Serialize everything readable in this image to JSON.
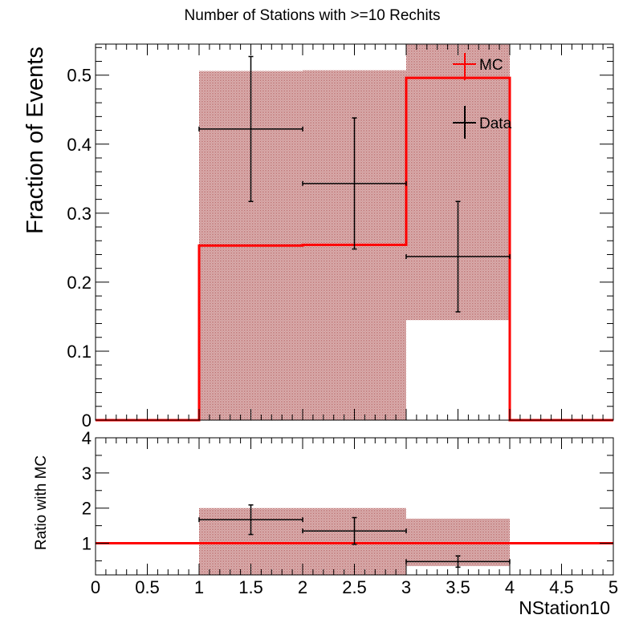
{
  "chart_data": [
    {
      "type": "bar",
      "title": "Number of Stations with >=10 Rechits",
      "xlabel": "",
      "ylabel": "Fraction of Events",
      "xlim": [
        0,
        5
      ],
      "ylim": [
        0,
        0.545
      ],
      "y_ticks": [
        0,
        0.1,
        0.2,
        0.3,
        0.4,
        0.5
      ],
      "y_tick_labels": [
        "0",
        "0.1",
        "0.2",
        "0.3",
        "0.4",
        "0.5"
      ],
      "grid": false,
      "legend_position": "top-right",
      "series": [
        {
          "name": "MC",
          "style": "histogram",
          "color": "#ff0000",
          "bins": [
            [
              0,
              1
            ],
            [
              1,
              2
            ],
            [
              2,
              3
            ],
            [
              3,
              4
            ],
            [
              4,
              5
            ]
          ],
          "values": [
            0,
            0.253,
            0.254,
            0.496,
            0
          ],
          "uncertainty_band": [
            [
              0,
              0
            ],
            [
              0,
              0.506
            ],
            [
              0,
              0.507
            ],
            [
              0.145,
              0.545
            ],
            [
              0,
              0
            ]
          ]
        },
        {
          "name": "Data",
          "style": "errorbar",
          "color": "#000000",
          "x": [
            1.5,
            2.5,
            3.5
          ],
          "x_err": [
            0.5,
            0.5,
            0.5
          ],
          "values": [
            0.422,
            0.343,
            0.237
          ],
          "y_err": [
            0.105,
            0.095,
            0.08
          ]
        }
      ]
    },
    {
      "type": "line",
      "title": "",
      "xlabel": "NStation10",
      "ylabel": "Ratio with MC",
      "xlim": [
        0,
        5
      ],
      "ylim": [
        0.1,
        4
      ],
      "x_ticks": [
        0,
        0.5,
        1,
        1.5,
        2,
        2.5,
        3,
        3.5,
        4,
        4.5,
        5
      ],
      "x_tick_labels": [
        "0",
        "0.5",
        "1",
        "1.5",
        "2",
        "2.5",
        "3",
        "3.5",
        "4",
        "4.5",
        "5"
      ],
      "y_ticks": [
        1,
        2,
        3,
        4
      ],
      "y_tick_labels": [
        "1",
        "2",
        "3",
        "4"
      ],
      "grid": false,
      "reference_line": 1,
      "reference_color": "#ff0000",
      "uncertainty_band": [
        [
          1,
          2,
          0.1,
          2.0
        ],
        [
          2,
          3,
          0.1,
          2.0
        ],
        [
          3,
          4,
          0.35,
          1.7
        ]
      ],
      "ratio_points": {
        "x": [
          1.5,
          2.5,
          3.5
        ],
        "x_err": [
          0.5,
          0.5,
          0.5
        ],
        "values": [
          1.67,
          1.35,
          0.48
        ],
        "y_err": [
          0.42,
          0.38,
          0.16
        ]
      }
    }
  ]
}
